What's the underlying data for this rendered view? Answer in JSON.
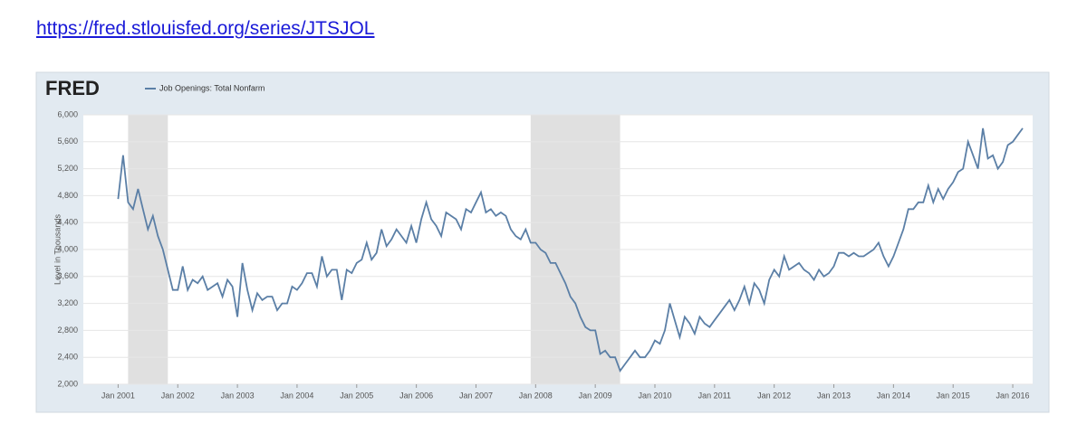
{
  "link": "https://fred.stlouisfed.org/series/JTSJOL",
  "chart_data": {
    "type": "line",
    "logo": "FRED",
    "y_label": "Level in Thousands",
    "x": [
      "2001-01",
      "2001-02",
      "2001-03",
      "2001-04",
      "2001-05",
      "2001-06",
      "2001-07",
      "2001-08",
      "2001-09",
      "2001-10",
      "2001-11",
      "2001-12",
      "2002-01",
      "2002-02",
      "2002-03",
      "2002-04",
      "2002-05",
      "2002-06",
      "2002-07",
      "2002-08",
      "2002-09",
      "2002-10",
      "2002-11",
      "2002-12",
      "2003-01",
      "2003-02",
      "2003-03",
      "2003-04",
      "2003-05",
      "2003-06",
      "2003-07",
      "2003-08",
      "2003-09",
      "2003-10",
      "2003-11",
      "2003-12",
      "2004-01",
      "2004-02",
      "2004-03",
      "2004-04",
      "2004-05",
      "2004-06",
      "2004-07",
      "2004-08",
      "2004-09",
      "2004-10",
      "2004-11",
      "2004-12",
      "2005-01",
      "2005-02",
      "2005-03",
      "2005-04",
      "2005-05",
      "2005-06",
      "2005-07",
      "2005-08",
      "2005-09",
      "2005-10",
      "2005-11",
      "2005-12",
      "2006-01",
      "2006-02",
      "2006-03",
      "2006-04",
      "2006-05",
      "2006-06",
      "2006-07",
      "2006-08",
      "2006-09",
      "2006-10",
      "2006-11",
      "2006-12",
      "2007-01",
      "2007-02",
      "2007-03",
      "2007-04",
      "2007-05",
      "2007-06",
      "2007-07",
      "2007-08",
      "2007-09",
      "2007-10",
      "2007-11",
      "2007-12",
      "2008-01",
      "2008-02",
      "2008-03",
      "2008-04",
      "2008-05",
      "2008-06",
      "2008-07",
      "2008-08",
      "2008-09",
      "2008-10",
      "2008-11",
      "2008-12",
      "2009-01",
      "2009-02",
      "2009-03",
      "2009-04",
      "2009-05",
      "2009-06",
      "2009-07",
      "2009-08",
      "2009-09",
      "2009-10",
      "2009-11",
      "2009-12",
      "2010-01",
      "2010-02",
      "2010-03",
      "2010-04",
      "2010-05",
      "2010-06",
      "2010-07",
      "2010-08",
      "2010-09",
      "2010-10",
      "2010-11",
      "2010-12",
      "2011-01",
      "2011-02",
      "2011-03",
      "2011-04",
      "2011-05",
      "2011-06",
      "2011-07",
      "2011-08",
      "2011-09",
      "2011-10",
      "2011-11",
      "2011-12",
      "2012-01",
      "2012-02",
      "2012-03",
      "2012-04",
      "2012-05",
      "2012-06",
      "2012-07",
      "2012-08",
      "2012-09",
      "2012-10",
      "2012-11",
      "2012-12",
      "2013-01",
      "2013-02",
      "2013-03",
      "2013-04",
      "2013-05",
      "2013-06",
      "2013-07",
      "2013-08",
      "2013-09",
      "2013-10",
      "2013-11",
      "2013-12",
      "2014-01",
      "2014-02",
      "2014-03",
      "2014-04",
      "2014-05",
      "2014-06",
      "2014-07",
      "2014-08",
      "2014-09",
      "2014-10",
      "2014-11",
      "2014-12",
      "2015-01",
      "2015-02",
      "2015-03",
      "2015-04",
      "2015-05",
      "2015-06",
      "2015-07",
      "2015-08",
      "2015-09",
      "2015-10",
      "2015-11",
      "2015-12",
      "2016-01",
      "2016-02",
      "2016-03"
    ],
    "series": [
      {
        "name": "Job Openings: Total Nonfarm",
        "color": "#5b7fa6",
        "values": [
          4750,
          5400,
          4700,
          4600,
          4900,
          4600,
          4300,
          4500,
          4200,
          4000,
          3700,
          3400,
          3400,
          3750,
          3400,
          3550,
          3500,
          3600,
          3400,
          3450,
          3500,
          3300,
          3550,
          3450,
          3000,
          3800,
          3400,
          3100,
          3350,
          3250,
          3300,
          3300,
          3100,
          3200,
          3200,
          3450,
          3400,
          3500,
          3650,
          3650,
          3450,
          3900,
          3600,
          3700,
          3700,
          3250,
          3700,
          3650,
          3800,
          3850,
          4100,
          3850,
          3950,
          4300,
          4050,
          4150,
          4300,
          4200,
          4100,
          4350,
          4100,
          4450,
          4700,
          4450,
          4350,
          4200,
          4550,
          4500,
          4450,
          4300,
          4600,
          4550,
          4700,
          4850,
          4550,
          4600,
          4500,
          4550,
          4500,
          4300,
          4200,
          4150,
          4300,
          4100,
          4100,
          4000,
          3950,
          3800,
          3800,
          3650,
          3500,
          3300,
          3200,
          3000,
          2850,
          2800,
          2800,
          2450,
          2500,
          2400,
          2400,
          2200,
          2300,
          2400,
          2500,
          2400,
          2400,
          2500,
          2650,
          2600,
          2800,
          3200,
          2950,
          2700,
          3000,
          2900,
          2750,
          3000,
          2900,
          2850,
          2950,
          3050,
          3150,
          3250,
          3100,
          3250,
          3450,
          3200,
          3500,
          3400,
          3200,
          3550,
          3700,
          3600,
          3900,
          3700,
          3750,
          3800,
          3700,
          3650,
          3550,
          3700,
          3600,
          3650,
          3750,
          3950,
          3950,
          3900,
          3950,
          3900,
          3900,
          3950,
          4000,
          4100,
          3900,
          3750,
          3900,
          4100,
          4300,
          4600,
          4600,
          4700,
          4700,
          4950,
          4700,
          4900,
          4750,
          4900,
          5000,
          5150,
          5200,
          5600,
          5400,
          5200,
          5800,
          5350,
          5400,
          5200,
          5300,
          5550,
          5600,
          5700,
          5800
        ]
      }
    ],
    "shaded_periods": [
      [
        "2001-03",
        "2001-11"
      ],
      [
        "2007-12",
        "2009-06"
      ]
    ],
    "xlim": [
      "2000-06",
      "2016-05"
    ],
    "xticks": [
      {
        "value": "2001-01",
        "label": "Jan 2001"
      },
      {
        "value": "2002-01",
        "label": "Jan 2002"
      },
      {
        "value": "2003-01",
        "label": "Jan 2003"
      },
      {
        "value": "2004-01",
        "label": "Jan 2004"
      },
      {
        "value": "2005-01",
        "label": "Jan 2005"
      },
      {
        "value": "2006-01",
        "label": "Jan 2006"
      },
      {
        "value": "2007-01",
        "label": "Jan 2007"
      },
      {
        "value": "2008-01",
        "label": "Jan 2008"
      },
      {
        "value": "2009-01",
        "label": "Jan 2009"
      },
      {
        "value": "2010-01",
        "label": "Jan 2010"
      },
      {
        "value": "2011-01",
        "label": "Jan 2011"
      },
      {
        "value": "2012-01",
        "label": "Jan 2012"
      },
      {
        "value": "2013-01",
        "label": "Jan 2013"
      },
      {
        "value": "2014-01",
        "label": "Jan 2014"
      },
      {
        "value": "2015-01",
        "label": "Jan 2015"
      },
      {
        "value": "2016-01",
        "label": "Jan 2016"
      }
    ],
    "ylim": [
      2000,
      6000
    ],
    "yticks": [
      {
        "value": 2000,
        "label": "2,000"
      },
      {
        "value": 2400,
        "label": "2,400"
      },
      {
        "value": 2800,
        "label": "2,800"
      },
      {
        "value": 3200,
        "label": "3,200"
      },
      {
        "value": 3600,
        "label": "3,600"
      },
      {
        "value": 4000,
        "label": "4,000"
      },
      {
        "value": 4400,
        "label": "4,400"
      },
      {
        "value": 4800,
        "label": "4,800"
      },
      {
        "value": 5200,
        "label": "5,200"
      },
      {
        "value": 5600,
        "label": "5,600"
      },
      {
        "value": 6000,
        "label": "6,000"
      }
    ],
    "grid": true
  }
}
